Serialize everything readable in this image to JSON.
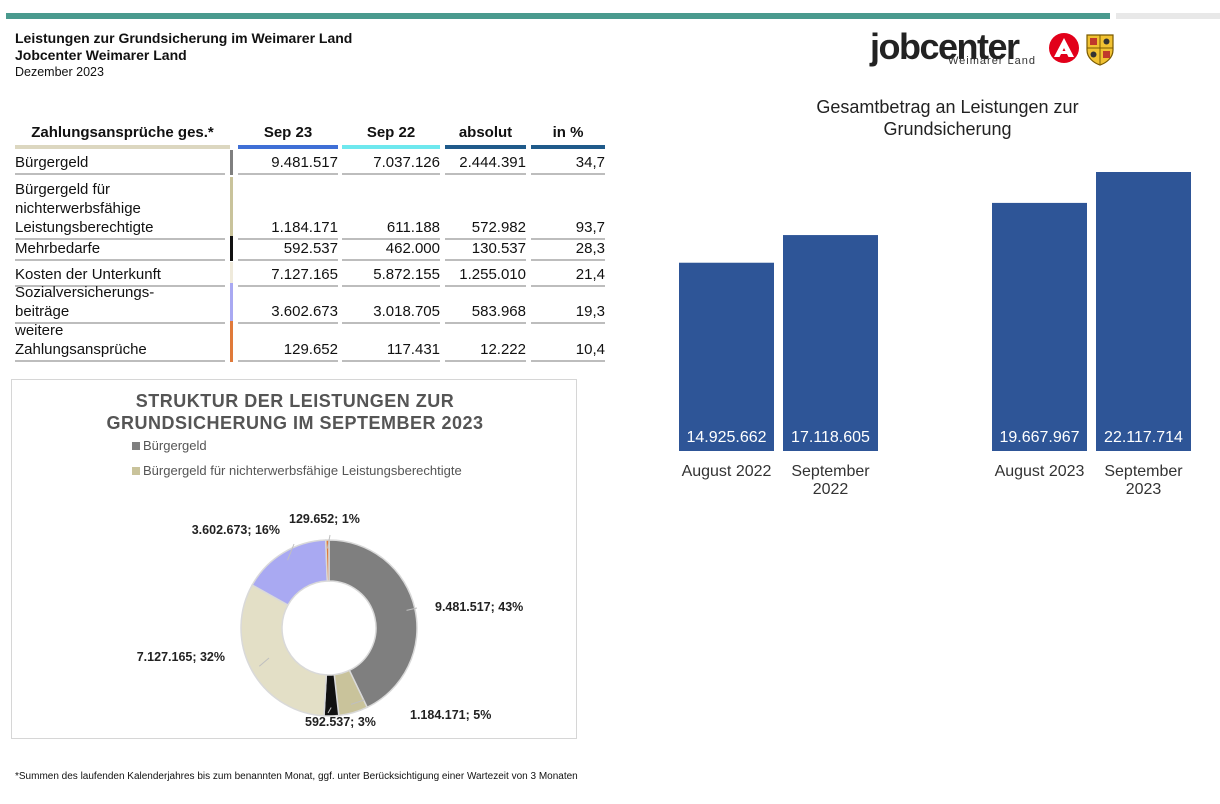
{
  "header": {
    "title1": "Leistungen zur Grundsicherung im Weimarer Land",
    "title2": "Jobcenter Weimarer Land",
    "date": "Dezember 2023"
  },
  "logo": {
    "word": "jobcenter",
    "sub": "Weimarer Land"
  },
  "table": {
    "columns": [
      "Zahlungsansprüche ges.*",
      "Sep 23",
      "Sep 22",
      "absolut",
      "in %"
    ],
    "rows": [
      {
        "label_lines": [
          "Bürgergeld"
        ],
        "sep23": "9.481.517",
        "sep22": "7.037.126",
        "absolut": "2.444.391",
        "pct": "34,7",
        "color": "#7f7f7f"
      },
      {
        "label_lines": [
          "Bürgergeld für",
          "nichterwerbsfähige",
          "Leistungsberechtigte"
        ],
        "sep23": "1.184.171",
        "sep22": "611.188",
        "absolut": "572.982",
        "pct": "93,7",
        "color": "#c9c39b"
      },
      {
        "label_lines": [
          "Mehrbedarfe"
        ],
        "sep23": "592.537",
        "sep22": "462.000",
        "absolut": "130.537",
        "pct": "28,3",
        "color": "#111111"
      },
      {
        "label_lines": [
          "Kosten der Unterkunft"
        ],
        "sep23": "7.127.165",
        "sep22": "5.872.155",
        "absolut": "1.255.010",
        "pct": "21,4",
        "color": "#efeadb"
      },
      {
        "label_lines": [
          "Sozialversicherungs-",
          "beiträge"
        ],
        "sep23": "3.602.673",
        "sep22": "3.018.705",
        "absolut": "583.968",
        "pct": "19,3",
        "color": "#a9a9f2"
      },
      {
        "label_lines": [
          "weitere",
          "Zahlungsansprüche"
        ],
        "sep23": "129.652",
        "sep22": "117.431",
        "absolut": "12.222",
        "pct": "10,4",
        "color": "#e07a3a"
      }
    ],
    "header_bar_colors": [
      "#dcd7c0",
      "#3f6fd6",
      "#6ee8ee",
      "#1f5a8a",
      "#1f5a8a"
    ]
  },
  "chart_data": [
    {
      "type": "pie",
      "title": "STRUKTUR DER LEISTUNGEN ZUR GRUNDSICHERUNG IM SEPTEMBER 2023",
      "legend": [
        "Bürgergeld",
        "Bürgergeld für nichterwerbsfähige Leistungsberechtigte"
      ],
      "categories": [
        "Bürgergeld",
        "Bürgergeld für nichterwerbsfähige Leistungsberechtigte",
        "Mehrbedarfe",
        "Kosten der Unterkunft",
        "Sozialversicherungsbeiträge",
        "weitere Zahlungsansprüche"
      ],
      "values": [
        9481517,
        1184171,
        592537,
        7127165,
        3602673,
        129652
      ],
      "labels": [
        "9.481.517; 43%",
        "1.184.171; 5%",
        "592.537; 3%",
        "7.127.165; 32%",
        "3.602.673; 16%",
        "129.652; 1%"
      ],
      "colors": [
        "#7f7f7f",
        "#c9c39b",
        "#111111",
        "#e3dfc6",
        "#a9a9f2",
        "#e07a3a"
      ],
      "donut": true
    },
    {
      "type": "bar",
      "title": "Gesamtbetrag an Leistungen zur Grundsicherung",
      "categories": [
        "August 2022",
        "September 2022",
        "August 2023",
        "September 2023"
      ],
      "category_lines": [
        [
          "August 2022"
        ],
        [
          "September",
          "2022"
        ],
        [
          "August 2023"
        ],
        [
          "September",
          "2023"
        ]
      ],
      "values": [
        14925662,
        17118605,
        19667967,
        22117714
      ],
      "value_labels": [
        "14.925.662",
        "17.118.605",
        "19.667.967",
        "22.117.714"
      ],
      "color": "#2e5597",
      "ylim": [
        0,
        25000000
      ],
      "grid": false
    }
  ],
  "footnote": "*Summen des laufenden Kalenderjahres bis zum benannten Monat, ggf. unter Berücksichtigung einer Wartezeit von 3 Monaten"
}
